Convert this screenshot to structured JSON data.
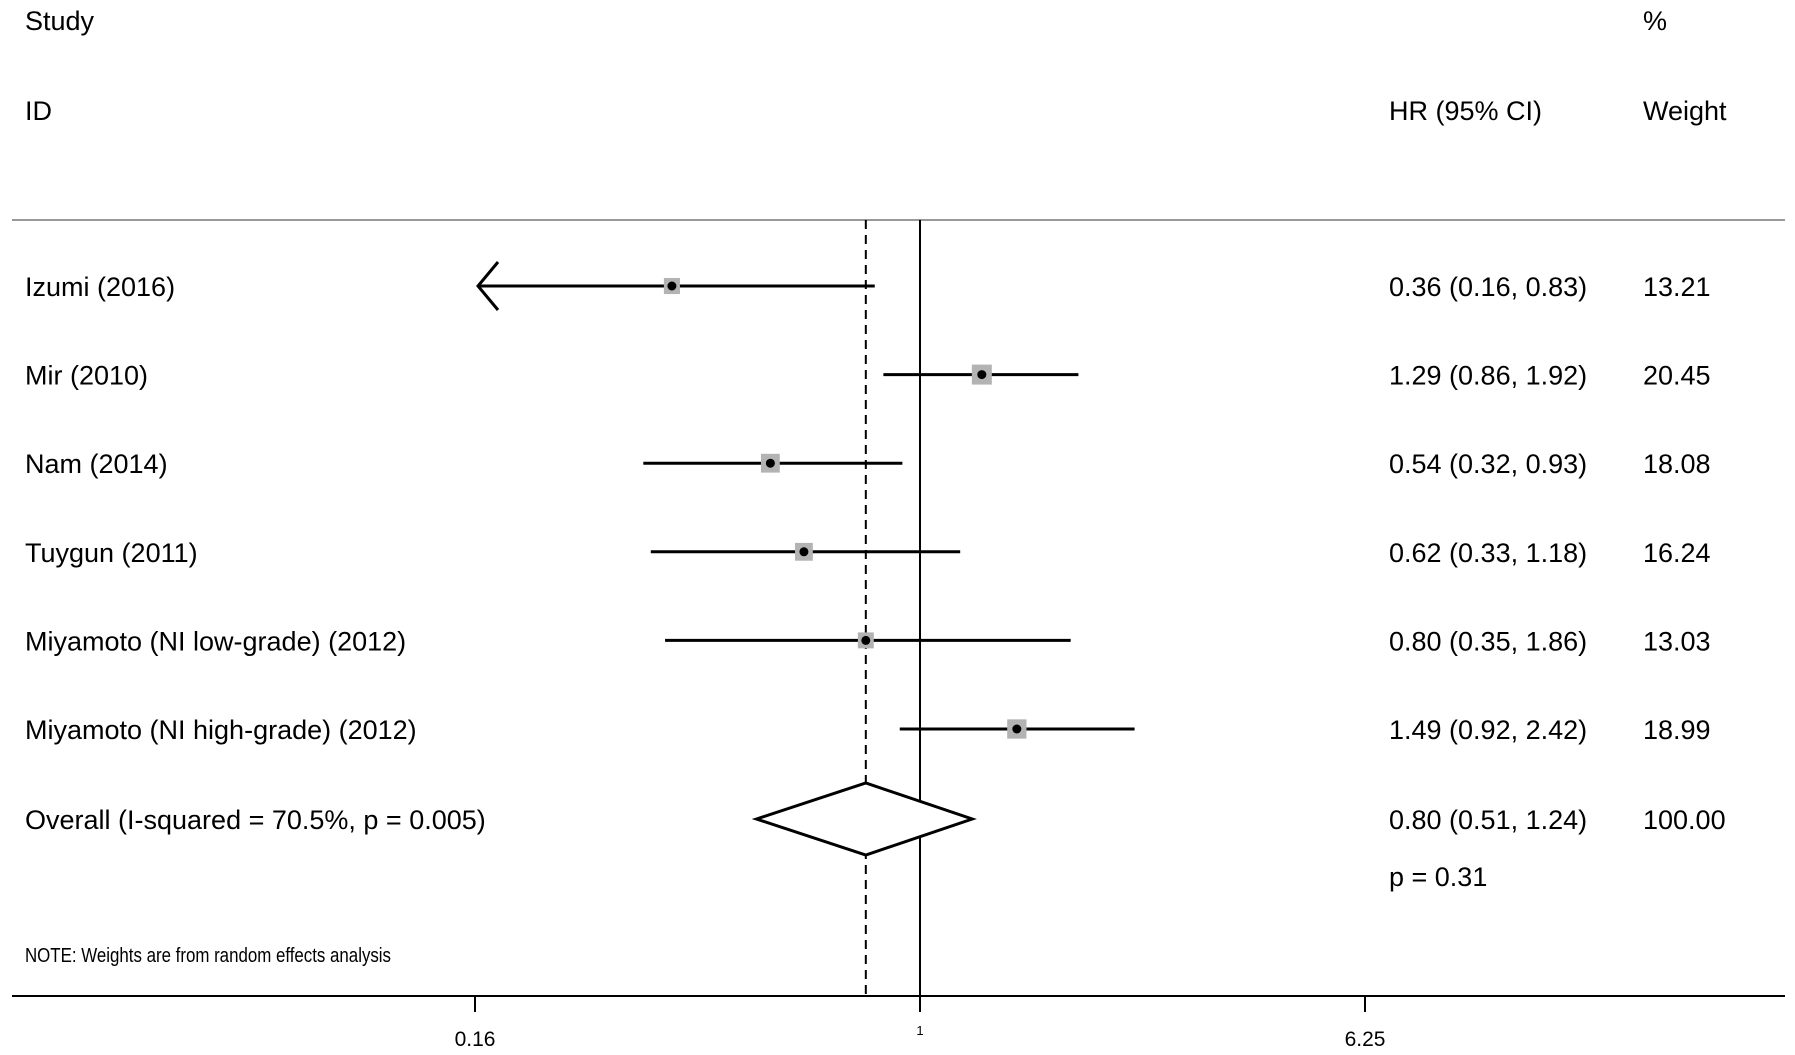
{
  "chart_data": {
    "type": "forest",
    "x_scale": "log",
    "header": {
      "study_line1": "Study",
      "study_line2": "ID",
      "estimate": "HR (95% CI)",
      "weight_line1": "%",
      "weight_line2": "Weight"
    },
    "studies": [
      {
        "label": "Izumi (2016)",
        "hr": 0.36,
        "lower": 0.16,
        "upper": 0.83,
        "ci_text": "0.36 (0.16, 0.83)",
        "weight": 13.21,
        "weight_text": "13.21",
        "lower_clipped": true
      },
      {
        "label": "Mir (2010)",
        "hr": 1.29,
        "lower": 0.86,
        "upper": 1.92,
        "ci_text": "1.29 (0.86, 1.92)",
        "weight": 20.45,
        "weight_text": "20.45",
        "lower_clipped": false
      },
      {
        "label": "Nam (2014)",
        "hr": 0.54,
        "lower": 0.32,
        "upper": 0.93,
        "ci_text": "0.54 (0.32, 0.93)",
        "weight": 18.08,
        "weight_text": "18.08",
        "lower_clipped": false
      },
      {
        "label": "Tuygun (2011)",
        "hr": 0.62,
        "lower": 0.33,
        "upper": 1.18,
        "ci_text": "0.62 (0.33, 1.18)",
        "weight": 16.24,
        "weight_text": "16.24",
        "lower_clipped": false
      },
      {
        "label": "Miyamoto (NI low-grade) (2012)",
        "hr": 0.8,
        "lower": 0.35,
        "upper": 1.86,
        "ci_text": "0.80 (0.35, 1.86)",
        "weight": 13.03,
        "weight_text": "13.03",
        "lower_clipped": false
      },
      {
        "label": "Miyamoto (NI high-grade) (2012)",
        "hr": 1.49,
        "lower": 0.92,
        "upper": 2.42,
        "ci_text": "1.49 (0.92, 2.42)",
        "weight": 18.99,
        "weight_text": "18.99",
        "lower_clipped": false
      }
    ],
    "overall": {
      "label": "Overall  (I-squared = 70.5%, p = 0.005)",
      "hr": 0.8,
      "lower": 0.51,
      "upper": 1.24,
      "ci_text": "0.80 (0.51, 1.24)",
      "weight_text": "100.00",
      "p_text": "p = 0.31"
    },
    "null_line": 1,
    "x_ticks": [
      {
        "value": 0.16,
        "label": "0.16"
      },
      {
        "value": 1,
        "label": "1"
      },
      {
        "value": 6.25,
        "label": "6.25"
      }
    ],
    "note": "NOTE: Weights are from random effects analysis",
    "colors": {
      "line": "#000000",
      "box": "#b3b3b3",
      "separator": "#999999"
    }
  }
}
